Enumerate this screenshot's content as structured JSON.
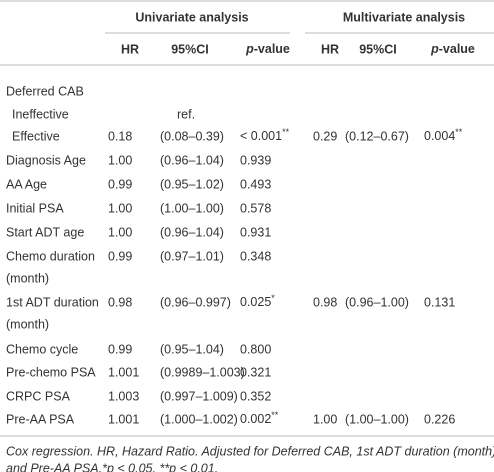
{
  "table": {
    "groups": [
      "Univariate analysis",
      "Multivariate analysis"
    ],
    "columns": [
      "HR",
      "95%CI",
      {
        "em": "p",
        "text": "-value"
      },
      "HR",
      "95%CI",
      {
        "em": "p",
        "text": "-value"
      }
    ],
    "rows": [
      {
        "label": [
          "Deferred CAB"
        ],
        "cells": [
          null,
          null,
          null,
          null,
          null,
          null
        ]
      },
      {
        "label": [
          "Ineffective"
        ],
        "indent": true,
        "cells": [
          null,
          "ref.",
          null,
          null,
          null,
          null
        ]
      },
      {
        "label": [
          "Effective"
        ],
        "indent": true,
        "cells": [
          "0.18",
          "(0.08–0.39)",
          {
            "text": "< 0.001",
            "sup": "**"
          },
          "0.29",
          "(0.12–0.67)",
          {
            "text": "0.004",
            "sup": "**"
          }
        ]
      },
      {
        "label": [
          "Diagnosis Age"
        ],
        "cells": [
          "1.00",
          "(0.96–1.04)",
          "0.939",
          null,
          null,
          null
        ]
      },
      {
        "label": [
          "AA Age"
        ],
        "cells": [
          "0.99",
          "(0.95–1.02)",
          "0.493",
          null,
          null,
          null
        ]
      },
      {
        "label": [
          "Initial PSA"
        ],
        "cells": [
          "1.00",
          "(1.00–1.00)",
          "0.578",
          null,
          null,
          null
        ]
      },
      {
        "label": [
          "Start ADT age"
        ],
        "cells": [
          "1.00",
          "(0.96–1.04)",
          "0.931",
          null,
          null,
          null
        ]
      },
      {
        "label": [
          "Chemo duration",
          "(month)"
        ],
        "cells": [
          "0.99",
          "(0.97–1.01)",
          "0.348",
          null,
          null,
          null
        ]
      },
      {
        "label": [
          "1st ADT duration",
          "(month)"
        ],
        "cells": [
          "0.98",
          "(0.96–0.997)",
          {
            "text": "0.025",
            "sup": "*"
          },
          "0.98",
          "(0.96–1.00)",
          "0.131"
        ]
      },
      {
        "label": [
          "Chemo cycle"
        ],
        "cells": [
          "0.99",
          "(0.95–1.04)",
          "0.800",
          null,
          null,
          null
        ]
      },
      {
        "label": [
          "Pre-chemo PSA"
        ],
        "cells": [
          "1.001",
          "(0.9989–1.003)",
          "0.321",
          null,
          null,
          null
        ]
      },
      {
        "label": [
          "CRPC PSA"
        ],
        "cells": [
          "1.003",
          "(0.997–1.009)",
          "0.352",
          null,
          null,
          null
        ]
      },
      {
        "label": [
          "Pre-AA PSA"
        ],
        "cells": [
          "1.001",
          "(1.000–1.002)",
          {
            "text": "0.002",
            "sup": "**"
          },
          "1.00",
          "(1.00–1.00)",
          "0.226"
        ]
      }
    ],
    "footnote": [
      "Cox regression. HR, Hazard Ratio. Adjusted for Deferred CAB, 1st ADT duration (month)",
      "and Pre-AA PSA.*p < 0.05, **p < 0.01."
    ]
  }
}
